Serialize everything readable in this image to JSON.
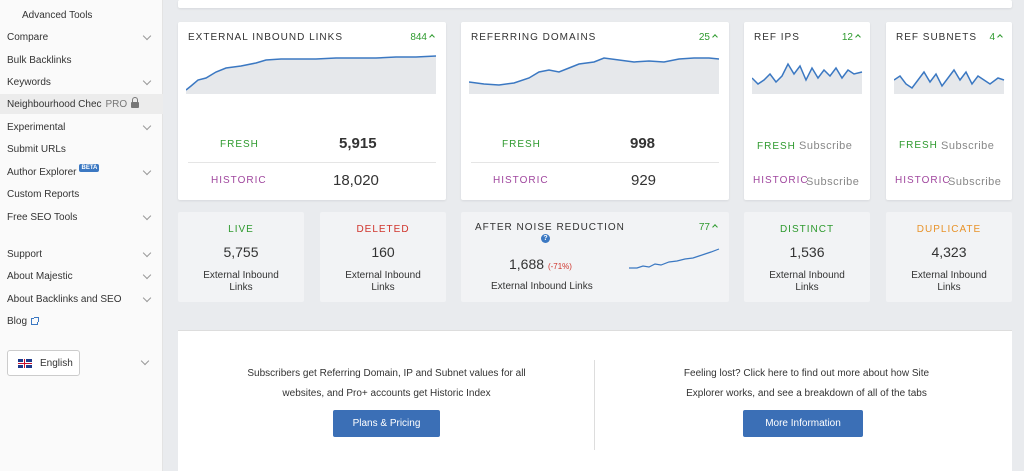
{
  "sidebar": {
    "items": [
      {
        "label": "Advanced Tools",
        "sub": true,
        "chevron": false
      },
      {
        "label": "Compare",
        "chevron": true
      },
      {
        "label": "Bulk Backlinks",
        "chevron": false
      },
      {
        "label": "Keywords",
        "chevron": true
      },
      {
        "label": "Neighbourhood Chec",
        "pro": "PRO",
        "active": true
      },
      {
        "label": "Experimental",
        "chevron": true
      },
      {
        "label": "Submit URLs",
        "chevron": false
      },
      {
        "label": "Author Explorer",
        "beta": "BETA",
        "chevron": true
      },
      {
        "label": "Custom Reports",
        "chevron": false
      },
      {
        "label": "Free SEO Tools",
        "chevron": true
      },
      {
        "label": "Support",
        "chevron": true
      },
      {
        "label": "About Majestic",
        "chevron": true
      },
      {
        "label": "About Backlinks and SEO",
        "chevron": true
      },
      {
        "label": "Blog",
        "external": true
      }
    ],
    "language": "English"
  },
  "cards": {
    "external_inbound": {
      "title": "EXTERNAL INBOUND LINKS",
      "badge": "844",
      "fresh_label": "FRESH",
      "fresh_value": "5,915",
      "historic_label": "HISTORIC",
      "historic_value": "18,020"
    },
    "referring_domains": {
      "title": "REFERRING DOMAINS",
      "badge": "25",
      "fresh_label": "FRESH",
      "fresh_value": "998",
      "historic_label": "HISTORIC",
      "historic_value": "929"
    },
    "ref_ips": {
      "title": "REF IPS",
      "badge": "12",
      "fresh_label": "FRESH",
      "historic_label": "HISTORIC",
      "subscribe": "Subscribe"
    },
    "ref_subnets": {
      "title": "REF SUBNETS",
      "badge": "4",
      "fresh_label": "FRESH",
      "historic_label": "HISTORIC",
      "subscribe": "Subscribe"
    }
  },
  "stats": {
    "live": {
      "label": "LIVE",
      "value": "5,755",
      "desc1": "External Inbound",
      "desc2": "Links"
    },
    "deleted": {
      "label": "DELETED",
      "value": "160",
      "desc1": "External Inbound",
      "desc2": "Links"
    },
    "noise": {
      "label": "AFTER NOISE REDUCTION",
      "badge": "77",
      "help": "?",
      "value": "1,688",
      "pct": "(-71%)",
      "desc": "External Inbound Links"
    },
    "distinct": {
      "label": "DISTINCT",
      "value": "1,536",
      "desc1": "External Inbound",
      "desc2": "Links"
    },
    "duplicate": {
      "label": "DUPLICATE",
      "value": "4,323",
      "desc1": "External Inbound",
      "desc2": "Links"
    }
  },
  "info": {
    "left_line1": "Subscribers get Referring Domain, IP and Subnet values for all",
    "left_line2": "websites, and Pro+ accounts get Historic Index",
    "left_button": "Plans & Pricing",
    "right_line1": "Feeling lost? Click here to find out more about how Site",
    "right_line2": "Explorer works, and see a breakdown of all of the tabs",
    "right_button": "More Information"
  },
  "colors": {
    "fresh": "#2e9a2e",
    "historic": "#a0479e",
    "deleted": "#d0342c",
    "duplicate": "#e8932a",
    "accent": "#3b6fb6"
  }
}
